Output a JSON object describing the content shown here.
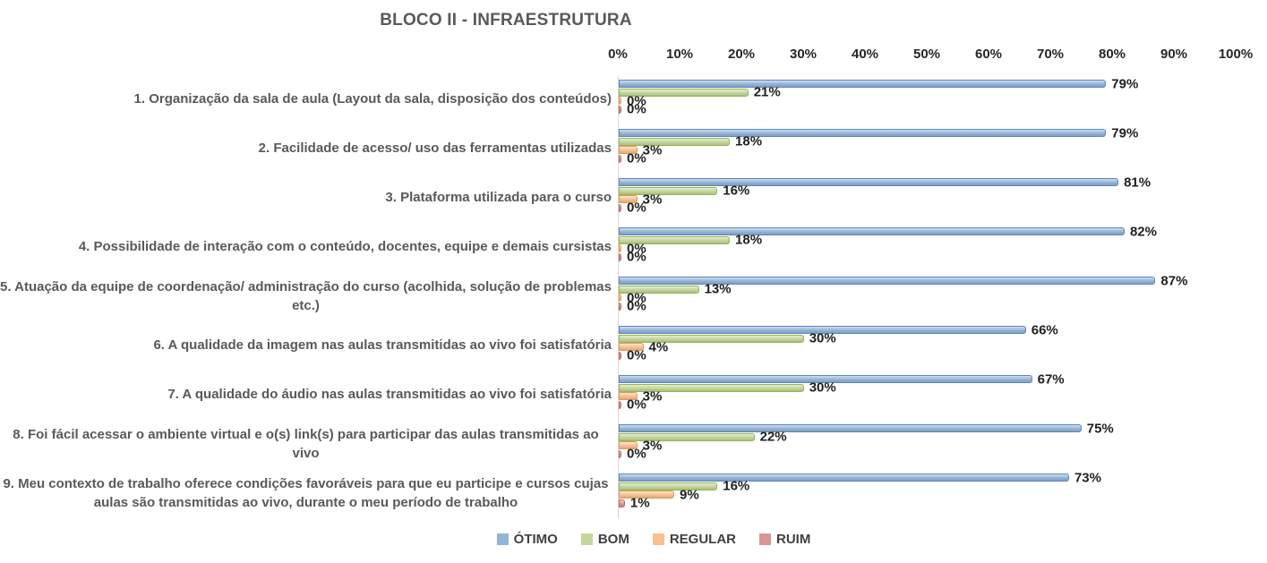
{
  "title": "BLOCO II - INFRAESTRUTURA",
  "colors": {
    "title_text": "#595959",
    "category_text": "#595959",
    "tick_text": "#262626",
    "value_text": "#1f1f1f",
    "axis_line": "#d9d9d9",
    "otimo": "#95B3D7",
    "bom": "#C3D69B",
    "regular": "#FAC090",
    "ruim": "#D99694"
  },
  "chart_data": {
    "type": "bar",
    "orientation": "horizontal",
    "title": "BLOCO II - INFRAESTRUTURA",
    "categories": [
      "1. Organização da sala de aula (Layout da sala, disposição dos conteúdos)",
      "2. Facilidade de acesso/ uso das ferramentas utilizadas",
      "3. Plataforma utilizada para o curso",
      "4. Possibilidade de interação com o conteúdo, docentes, equipe e demais cursistas",
      "5. Atuação da equipe de coordenação/ administração do curso (acolhida, solução de problemas etc.)",
      "6. A qualidade da imagem nas aulas transmitidas ao vivo foi satisfatória",
      "7. A qualidade do áudio nas aulas transmitidas ao vivo foi satisfatória",
      "8. Foi fácil acessar o ambiente virtual e o(s) link(s) para participar das aulas transmitidas ao vivo",
      "9. Meu contexto de trabalho oferece condições favoráveis para que eu participe e cursos cujas aulas são transmitidas ao vivo, durante o meu período de trabalho"
    ],
    "series": [
      {
        "name": "ÓTIMO",
        "color": "#95B3D7",
        "border": "#5B87BE",
        "values": [
          79,
          79,
          81,
          82,
          87,
          66,
          67,
          75,
          73
        ]
      },
      {
        "name": "BOM",
        "color": "#C3D69B",
        "border": "#94B64E",
        "values": [
          21,
          18,
          16,
          18,
          13,
          30,
          30,
          22,
          16
        ]
      },
      {
        "name": "REGULAR",
        "color": "#FAC090",
        "border": "#E09C57",
        "values": [
          0,
          3,
          3,
          0,
          0,
          4,
          3,
          3,
          9
        ]
      },
      {
        "name": "RUIM",
        "color": "#D99694",
        "border": "#B96A68",
        "values": [
          0,
          0,
          0,
          0,
          0,
          0,
          0,
          0,
          1
        ]
      }
    ],
    "x_ticks": [
      "0%",
      "10%",
      "20%",
      "30%",
      "40%",
      "50%",
      "60%",
      "70%",
      "80%",
      "90%",
      "100%"
    ],
    "xlim": [
      0,
      100
    ],
    "value_suffix": "%",
    "data_labels": true,
    "grid": false,
    "legend_position": "bottom"
  }
}
